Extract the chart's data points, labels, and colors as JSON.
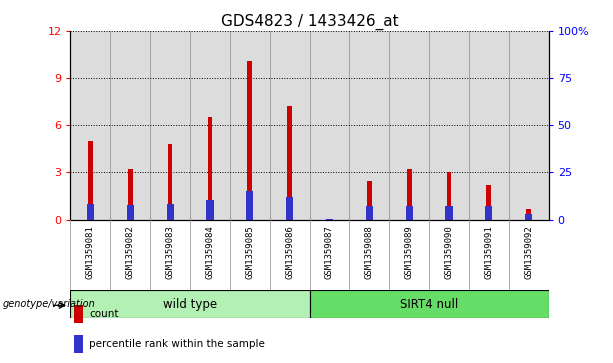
{
  "title": "GDS4823 / 1433426_at",
  "samples": [
    "GSM1359081",
    "GSM1359082",
    "GSM1359083",
    "GSM1359084",
    "GSM1359085",
    "GSM1359086",
    "GSM1359087",
    "GSM1359088",
    "GSM1359089",
    "GSM1359090",
    "GSM1359091",
    "GSM1359092"
  ],
  "count_values": [
    5.0,
    3.2,
    4.8,
    6.5,
    10.1,
    7.2,
    0.05,
    2.45,
    3.2,
    3.05,
    2.2,
    0.65
  ],
  "percentile_values": [
    8.5,
    7.5,
    8.5,
    10.5,
    15.0,
    12.0,
    0.5,
    7.0,
    7.0,
    7.0,
    7.0,
    3.0
  ],
  "groups": [
    {
      "label": "wild type",
      "start": 0,
      "end": 6,
      "color": "#b3f0b3"
    },
    {
      "label": "SIRT4 null",
      "start": 6,
      "end": 12,
      "color": "#66dd66"
    }
  ],
  "ylim_left": [
    0,
    12
  ],
  "ylim_right": [
    0,
    100
  ],
  "yticks_left": [
    0,
    3,
    6,
    9,
    12
  ],
  "yticks_right": [
    0,
    25,
    50,
    75,
    100
  ],
  "yticklabels_right": [
    "0",
    "25",
    "50",
    "75",
    "100%"
  ],
  "bar_color_red": "#CC0000",
  "bar_color_blue": "#3333CC",
  "bar_width": 0.12,
  "blue_bar_width": 0.18,
  "grid_color": "black",
  "bg_color_plot": "#DCDCDC",
  "bg_color_label_row": "#C8C8C8",
  "genotype_label": "genotype/variation",
  "legend_count": "count",
  "legend_percentile": "percentile rank within the sample",
  "title_fontsize": 11,
  "axis_tick_fontsize": 8,
  "tick_label_fontsize": 7
}
